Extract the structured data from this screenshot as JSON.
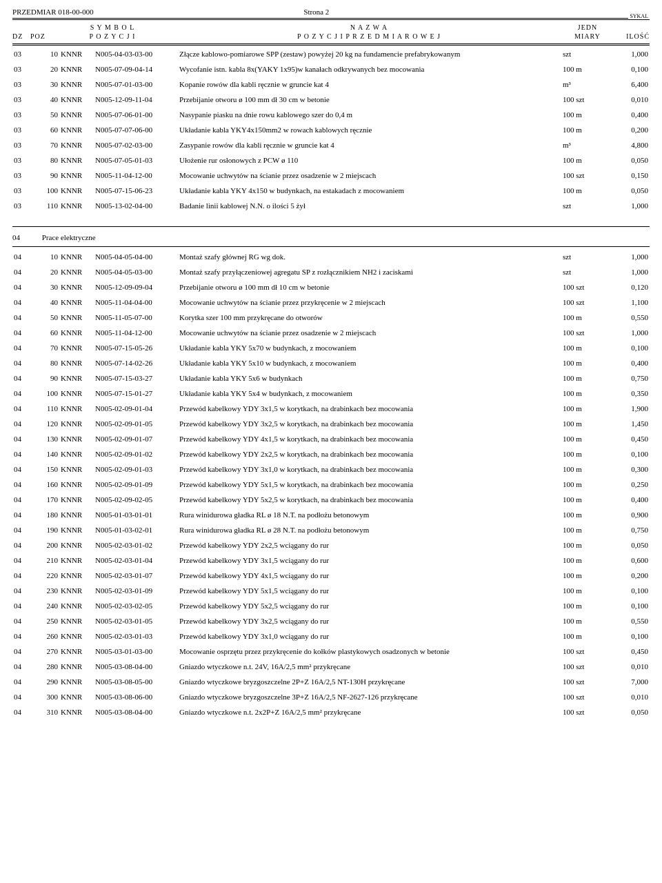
{
  "header": {
    "left": "PRZEDMIAR  018-00-000",
    "center": "Strona 2",
    "sykal": "SYKAL"
  },
  "columns": {
    "dz": "DZ",
    "poz": "POZ",
    "symbol1": "S Y M B O L",
    "symbol2": "P O Z Y C J I",
    "nazwa1": "N A Z W A",
    "nazwa2": "P O Z Y C J I   P R Z E D M I A R O W E J",
    "jedn1": "JEDN",
    "jedn2": "MIARY",
    "ilosc": "ILOŚĆ"
  },
  "section03": [
    {
      "dz": "03",
      "poz": "10",
      "kn": "KNNR",
      "code": "N005-04-03-03-00",
      "desc": "Złącze kablowo-pomiarowe SPP (zestaw) powyżej 20 kg na fundamencie prefabrykowanym",
      "unit": "szt",
      "qty": "1,000"
    },
    {
      "dz": "03",
      "poz": "20",
      "kn": "KNNR",
      "code": "N005-07-09-04-14",
      "desc": "Wycofanie istn. kabla 8x(YAKY 1x95)w kanałach odkrywanych bez mocowania",
      "unit": "100 m",
      "qty": "0,100"
    },
    {
      "dz": "03",
      "poz": "30",
      "kn": "KNNR",
      "code": "N005-07-01-03-00",
      "desc": "Kopanie rowów dla kabli ręcznie w gruncie kat 4",
      "unit": "m³",
      "qty": "6,400"
    },
    {
      "dz": "03",
      "poz": "40",
      "kn": "KNNR",
      "code": "N005-12-09-11-04",
      "desc": "Przebijanie otworu ø 100 mm dł 30 cm w betonie",
      "unit": "100 szt",
      "qty": "0,010"
    },
    {
      "dz": "03",
      "poz": "50",
      "kn": "KNNR",
      "code": "N005-07-06-01-00",
      "desc": "Nasypanie piasku na dnie rowu kablowego szer do 0,4 m",
      "unit": "100 m",
      "qty": "0,400"
    },
    {
      "dz": "03",
      "poz": "60",
      "kn": "KNNR",
      "code": "N005-07-07-06-00",
      "desc": "Układanie kabla YKY4x150mm2 w rowach kablowych ręcznie",
      "unit": "100 m",
      "qty": "0,200"
    },
    {
      "dz": "03",
      "poz": "70",
      "kn": "KNNR",
      "code": "N005-07-02-03-00",
      "desc": "Zasypanie rowów dla kabli ręcznie w gruncie kat 4",
      "unit": "m³",
      "qty": "4,800"
    },
    {
      "dz": "03",
      "poz": "80",
      "kn": "KNNR",
      "code": "N005-07-05-01-03",
      "desc": "Ułożenie rur osłonowych z PCW ø 110",
      "unit": "100 m",
      "qty": "0,050"
    },
    {
      "dz": "03",
      "poz": "90",
      "kn": "KNNR",
      "code": "N005-11-04-12-00",
      "desc": "Mocowanie uchwytów na ścianie przez osadzenie w 2 miejscach",
      "unit": "100 szt",
      "qty": "0,150"
    },
    {
      "dz": "03",
      "poz": "100",
      "kn": "KNNR",
      "code": "N005-07-15-06-23",
      "desc": "Układanie kabla YKY 4x150 w budynkach, na estakadach z mocowaniem",
      "unit": "100 m",
      "qty": "0,050"
    },
    {
      "dz": "03",
      "poz": "110",
      "kn": "KNNR",
      "code": "N005-13-02-04-00",
      "desc": "Badanie linii kablowej N.N. o ilości 5 żył",
      "unit": "szt",
      "qty": "1,000"
    }
  ],
  "section04_title": {
    "dz": "04",
    "label": "Prace elektryczne"
  },
  "section04": [
    {
      "dz": "04",
      "poz": "10",
      "kn": "KNNR",
      "code": "N005-04-05-04-00",
      "desc": "Montaż szafy głównej RG wg dok.",
      "unit": "szt",
      "qty": "1,000"
    },
    {
      "dz": "04",
      "poz": "20",
      "kn": "KNNR",
      "code": "N005-04-05-03-00",
      "desc": "Montaż szafy przyłączeniowej agregatu SP z rozłącznikiem NH2 i zaciskami",
      "unit": "szt",
      "qty": "1,000"
    },
    {
      "dz": "04",
      "poz": "30",
      "kn": "KNNR",
      "code": "N005-12-09-09-04",
      "desc": "Przebijanie otworu ø 100 mm dł 10 cm w betonie",
      "unit": "100 szt",
      "qty": "0,120"
    },
    {
      "dz": "04",
      "poz": "40",
      "kn": "KNNR",
      "code": "N005-11-04-04-00",
      "desc": "Mocowanie uchwytów na ścianie przez przykręcenie w 2 miejscach",
      "unit": "100 szt",
      "qty": "1,100"
    },
    {
      "dz": "04",
      "poz": "50",
      "kn": "KNNR",
      "code": "N005-11-05-07-00",
      "desc": "Korytka szer 100 mm przykręcane do otworów",
      "unit": "100 m",
      "qty": "0,550"
    },
    {
      "dz": "04",
      "poz": "60",
      "kn": "KNNR",
      "code": "N005-11-04-12-00",
      "desc": "Mocowanie uchwytów na ścianie przez osadzenie w 2 miejscach",
      "unit": "100 szt",
      "qty": "1,000"
    },
    {
      "dz": "04",
      "poz": "70",
      "kn": "KNNR",
      "code": "N005-07-15-05-26",
      "desc": "Układanie kabla YKY 5x70 w budynkach, z mocowaniem",
      "unit": "100 m",
      "qty": "0,100"
    },
    {
      "dz": "04",
      "poz": "80",
      "kn": "KNNR",
      "code": "N005-07-14-02-26",
      "desc": "Układanie kabla YKY 5x10 w budynkach, z mocowaniem",
      "unit": "100 m",
      "qty": "0,400"
    },
    {
      "dz": "04",
      "poz": "90",
      "kn": "KNNR",
      "code": "N005-07-15-03-27",
      "desc": "Układanie kabla YKY 5x6 w budynkach",
      "unit": "100 m",
      "qty": "0,750"
    },
    {
      "dz": "04",
      "poz": "100",
      "kn": "KNNR",
      "code": "N005-07-15-01-27",
      "desc": "Układanie kabla YKY 5x4 w budynkach, z mocowaniem",
      "unit": "100 m",
      "qty": "0,350"
    },
    {
      "dz": "04",
      "poz": "110",
      "kn": "KNNR",
      "code": "N005-02-09-01-04",
      "desc": "Przewód kabelkowy YDY 3x1,5 w korytkach, na drabinkach bez mocowania",
      "unit": "100 m",
      "qty": "1,900"
    },
    {
      "dz": "04",
      "poz": "120",
      "kn": "KNNR",
      "code": "N005-02-09-01-05",
      "desc": "Przewód kabelkowy YDY 3x2,5 w korytkach, na drabinkach bez mocowania",
      "unit": "100 m",
      "qty": "1,450"
    },
    {
      "dz": "04",
      "poz": "130",
      "kn": "KNNR",
      "code": "N005-02-09-01-07",
      "desc": "Przewód kabelkowy YDY 4x1,5 w korytkach, na drabinkach bez mocowania",
      "unit": "100 m",
      "qty": "0,450"
    },
    {
      "dz": "04",
      "poz": "140",
      "kn": "KNNR",
      "code": "N005-02-09-01-02",
      "desc": "Przewód kabelkowy YDY 2x2,5 w korytkach, na drabinkach bez mocowania",
      "unit": "100 m",
      "qty": "0,100"
    },
    {
      "dz": "04",
      "poz": "150",
      "kn": "KNNR",
      "code": "N005-02-09-01-03",
      "desc": "Przewód kabelkowy YDY 3x1,0 w korytkach, na drabinkach bez mocowania",
      "unit": "100 m",
      "qty": "0,300"
    },
    {
      "dz": "04",
      "poz": "160",
      "kn": "KNNR",
      "code": "N005-02-09-01-09",
      "desc": "Przewód kabelkowy YDY 5x1,5 w korytkach, na drabinkach bez mocowania",
      "unit": "100 m",
      "qty": "0,250"
    },
    {
      "dz": "04",
      "poz": "170",
      "kn": "KNNR",
      "code": "N005-02-09-02-05",
      "desc": "Przewód kabelkowy YDY 5x2,5 w korytkach, na drabinkach bez mocowania",
      "unit": "100 m",
      "qty": "0,400"
    },
    {
      "dz": "04",
      "poz": "180",
      "kn": "KNNR",
      "code": "N005-01-03-01-01",
      "desc": "Rura winidurowa gładka RL ø 18 N.T. na podłożu betonowym",
      "unit": "100 m",
      "qty": "0,900"
    },
    {
      "dz": "04",
      "poz": "190",
      "kn": "KNNR",
      "code": "N005-01-03-02-01",
      "desc": "Rura winidurowa gładka RL ø 28 N.T. na podłożu betonowym",
      "unit": "100 m",
      "qty": "0,750"
    },
    {
      "dz": "04",
      "poz": "200",
      "kn": "KNNR",
      "code": "N005-02-03-01-02",
      "desc": "Przewód kabelkowy YDY 2x2,5 wciągany do rur",
      "unit": "100 m",
      "qty": "0,050"
    },
    {
      "dz": "04",
      "poz": "210",
      "kn": "KNNR",
      "code": "N005-02-03-01-04",
      "desc": "Przewód kabelkowy YDY 3x1,5 wciągany do rur",
      "unit": "100 m",
      "qty": "0,600"
    },
    {
      "dz": "04",
      "poz": "220",
      "kn": "KNNR",
      "code": "N005-02-03-01-07",
      "desc": "Przewód kabelkowy YDY 4x1,5 wciągany do rur",
      "unit": "100 m",
      "qty": "0,200"
    },
    {
      "dz": "04",
      "poz": "230",
      "kn": "KNNR",
      "code": "N005-02-03-01-09",
      "desc": "Przewód kabelkowy YDY 5x1,5 wciągany do rur",
      "unit": "100 m",
      "qty": "0,100"
    },
    {
      "dz": "04",
      "poz": "240",
      "kn": "KNNR",
      "code": "N005-02-03-02-05",
      "desc": "Przewód kabelkowy YDY 5x2,5 wciągany do rur",
      "unit": "100 m",
      "qty": "0,100"
    },
    {
      "dz": "04",
      "poz": "250",
      "kn": "KNNR",
      "code": "N005-02-03-01-05",
      "desc": "Przewód kabelkowy YDY 3x2,5 wciągany do rur",
      "unit": "100 m",
      "qty": "0,550"
    },
    {
      "dz": "04",
      "poz": "260",
      "kn": "KNNR",
      "code": "N005-02-03-01-03",
      "desc": "Przewód kabelkowy YDY 3x1,0 wciągany do rur",
      "unit": "100 m",
      "qty": "0,100"
    },
    {
      "dz": "04",
      "poz": "270",
      "kn": "KNNR",
      "code": "N005-03-01-03-00",
      "desc": "Mocowanie osprzętu przez przykręcenie do kołków plastykowych osadzonych w betonie",
      "unit": "100 szt",
      "qty": "0,450"
    },
    {
      "dz": "04",
      "poz": "280",
      "kn": "KNNR",
      "code": "N005-03-08-04-00",
      "desc": "Gniazdo wtyczkowe n.t. 24V, 16A/2,5 mm² przykręcane",
      "unit": "100 szt",
      "qty": "0,010"
    },
    {
      "dz": "04",
      "poz": "290",
      "kn": "KNNR",
      "code": "N005-03-08-05-00",
      "desc": "Gniazdo wtyczkowe bryzgoszczelne 2P+Z 16A/2,5 NT-130H przykręcane",
      "unit": "100 szt",
      "qty": "7,000"
    },
    {
      "dz": "04",
      "poz": "300",
      "kn": "KNNR",
      "code": "N005-03-08-06-00",
      "desc": "Gniazdo wtyczkowe bryzgoszczelne 3P+Z 16A/2,5 NF-2627-126 przykręcane",
      "unit": "100 szt",
      "qty": "0,010"
    },
    {
      "dz": "04",
      "poz": "310",
      "kn": "KNNR",
      "code": "N005-03-08-04-00",
      "desc": "Gniazdo wtyczkowe n.t. 2x2P+Z 16A/2,5 mm² przykręcane",
      "unit": "100 szt",
      "qty": "0,050"
    }
  ]
}
